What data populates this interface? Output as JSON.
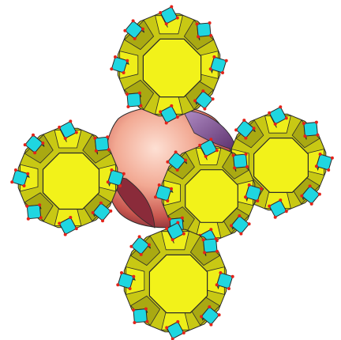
{
  "figure": {
    "subject": "polyhedral-framework-model",
    "colors": {
      "background": "#ffffff",
      "cage_face": "#f2f21a",
      "cage_face_shade": "#c8c814",
      "cage_face_dark": "#8f8f10",
      "cube_face": "#1fd6e0",
      "cube_face_dark": "#0f9aa6",
      "edge": "#2a2a2a",
      "node": "#e2231a",
      "cavity_light": "#f6b7a4",
      "cavity_mid": "#d9685a",
      "cavity_dark": "#8a2b3a",
      "cavity_purple": "#7d4d8c"
    },
    "cages": [
      {
        "id": "top"
      },
      {
        "id": "left"
      },
      {
        "id": "right"
      },
      {
        "id": "center"
      },
      {
        "id": "bottom"
      }
    ]
  }
}
